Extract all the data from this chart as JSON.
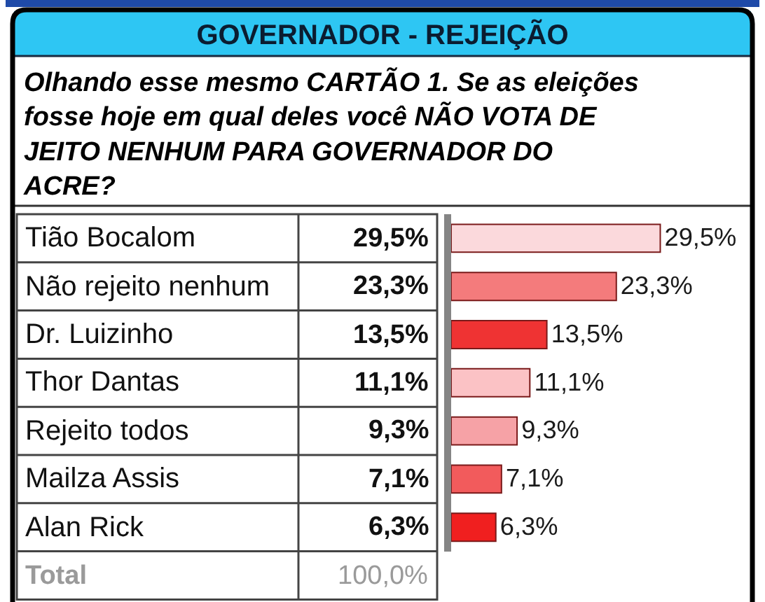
{
  "chart_data": {
    "type": "bar",
    "orientation": "horizontal",
    "title": "GOVERNADOR - REJEIÇÃO",
    "subtitle": "Olhando esse mesmo CARTÃO 1. Se as eleições\nfosse hoje em qual deles você NÃO VOTA DE\nJEITO NENHUM PARA GOVERNADOR DO\nACRE?",
    "categories": [
      "Tião Bocalom",
      "Não rejeito nenhum",
      "Dr. Luizinho",
      "Thor Dantas",
      "Rejeito todos",
      "Mailza Assis",
      "Alan Rick"
    ],
    "values": [
      29.5,
      23.3,
      13.5,
      11.1,
      9.3,
      7.1,
      6.3
    ],
    "colors": [
      "#fbd9dc",
      "#f47b7c",
      "#ef3333",
      "#fbc2c5",
      "#f6a2a6",
      "#f25b5c",
      "#f01f1f"
    ],
    "value_labels": [
      "29,5%",
      "23,3%",
      "13,5%",
      "11,1%",
      "9,3%",
      "7,1%",
      "6,3%"
    ],
    "annotations": [
      "Total",
      "100,0%"
    ],
    "tick_labels": "y"
  }
}
